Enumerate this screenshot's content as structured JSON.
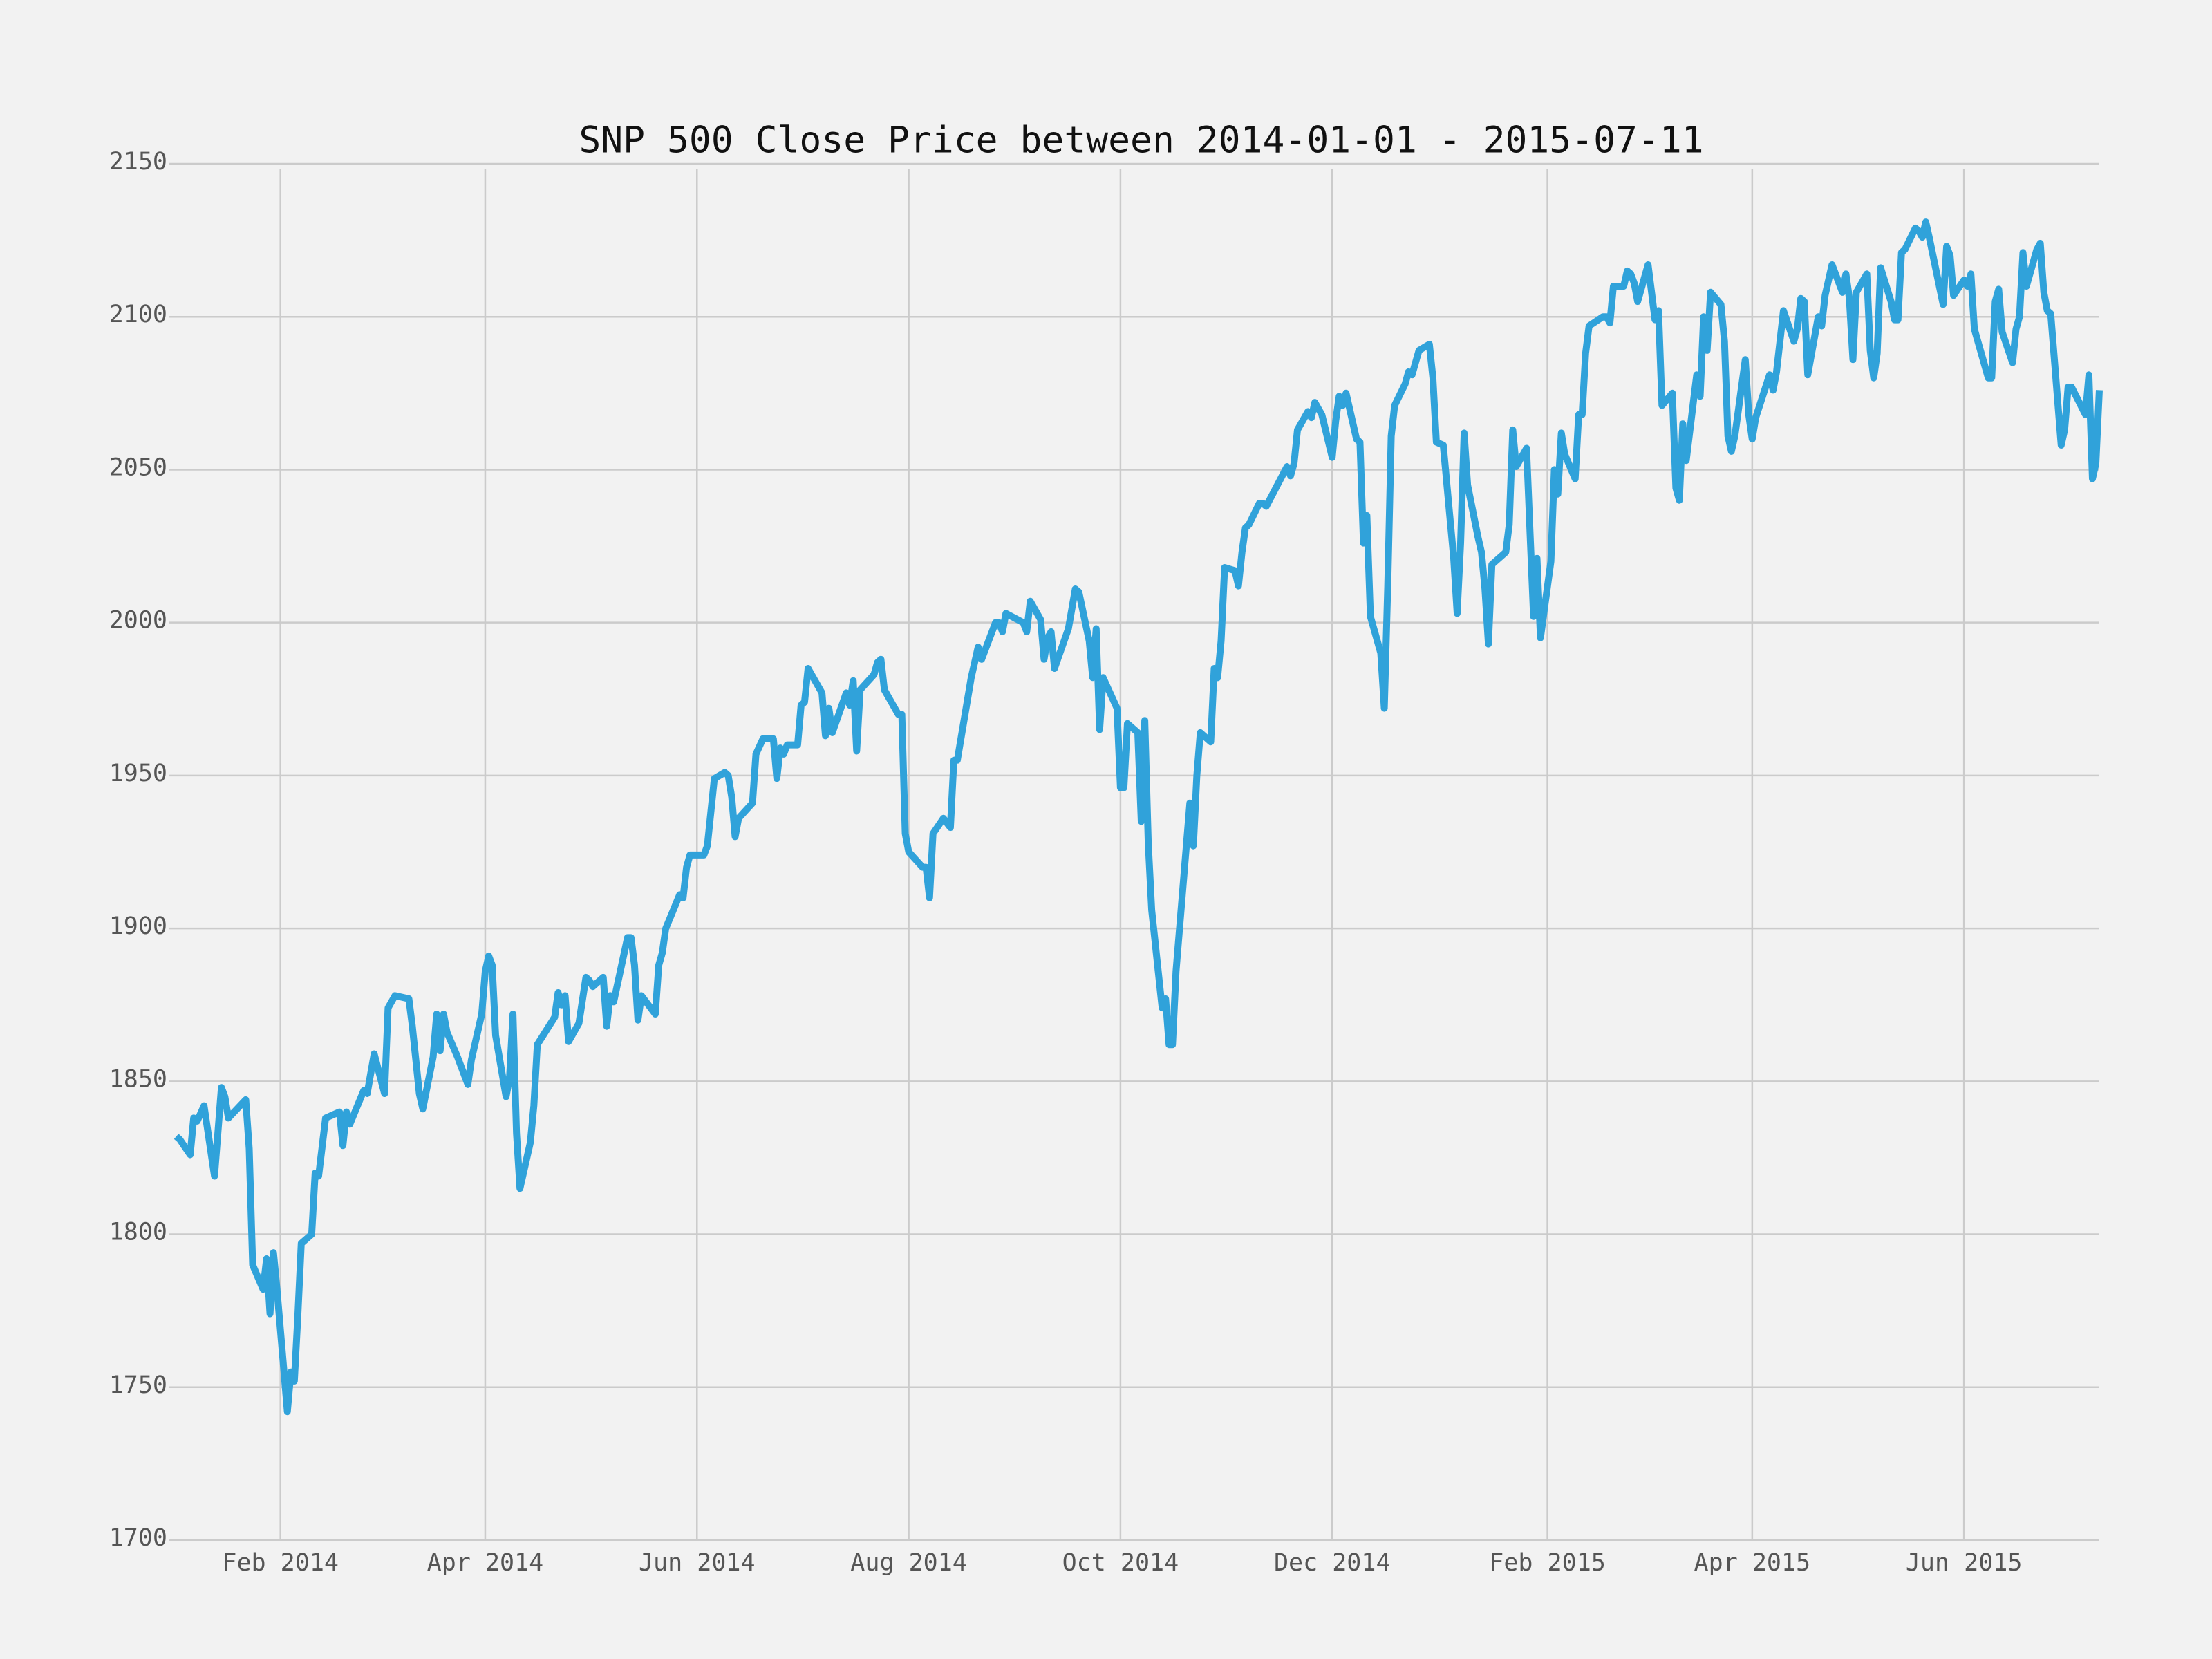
{
  "chart_data": {
    "type": "line",
    "title": "SNP 500 Close Price between 2014-01-01 - 2015-07-11",
    "color": "#30a2da",
    "grid": true,
    "xlim": [
      "2013-12-31",
      "2015-07-10"
    ],
    "xticks": [
      {
        "value": "2014-02-01",
        "label": "Feb 2014"
      },
      {
        "value": "2014-04-01",
        "label": "Apr 2014"
      },
      {
        "value": "2014-06-01",
        "label": "Jun 2014"
      },
      {
        "value": "2014-08-01",
        "label": "Aug 2014"
      },
      {
        "value": "2014-10-01",
        "label": "Oct 2014"
      },
      {
        "value": "2014-12-01",
        "label": "Dec 2014"
      },
      {
        "value": "2015-02-01",
        "label": "Feb 2015"
      },
      {
        "value": "2015-04-01",
        "label": "Apr 2015"
      },
      {
        "value": "2015-06-01",
        "label": "Jun 2015"
      }
    ],
    "ylim": [
      1700,
      2150
    ],
    "yticks": [
      1700,
      1750,
      1800,
      1850,
      1900,
      1950,
      2000,
      2050,
      2100,
      2150
    ],
    "x": [
      "2014-01-02",
      "2014-01-03",
      "2014-01-06",
      "2014-01-07",
      "2014-01-08",
      "2014-01-10",
      "2014-01-13",
      "2014-01-15",
      "2014-01-16",
      "2014-01-17",
      "2014-01-22",
      "2014-01-23",
      "2014-01-24",
      "2014-01-27",
      "2014-01-28",
      "2014-01-29",
      "2014-01-30",
      "2014-01-31",
      "2014-02-03",
      "2014-02-04",
      "2014-02-05",
      "2014-02-06",
      "2014-02-07",
      "2014-02-10",
      "2014-02-11",
      "2014-02-12",
      "2014-02-14",
      "2014-02-18",
      "2014-02-19",
      "2014-02-20",
      "2014-02-21",
      "2014-02-25",
      "2014-02-26",
      "2014-02-28",
      "2014-03-03",
      "2014-03-04",
      "2014-03-06",
      "2014-03-10",
      "2014-03-11",
      "2014-03-13",
      "2014-03-14",
      "2014-03-17",
      "2014-03-18",
      "2014-03-19",
      "2014-03-20",
      "2014-03-21",
      "2014-03-24",
      "2014-03-26",
      "2014-03-27",
      "2014-03-28",
      "2014-03-31",
      "2014-04-01",
      "2014-04-02",
      "2014-04-03",
      "2014-04-04",
      "2014-04-07",
      "2014-04-08",
      "2014-04-09",
      "2014-04-10",
      "2014-04-11",
      "2014-04-14",
      "2014-04-15",
      "2014-04-16",
      "2014-04-21",
      "2014-04-22",
      "2014-04-23",
      "2014-04-24",
      "2014-04-25",
      "2014-04-28",
      "2014-04-30",
      "2014-05-01",
      "2014-05-02",
      "2014-05-05",
      "2014-05-06",
      "2014-05-07",
      "2014-05-08",
      "2014-05-12",
      "2014-05-13",
      "2014-05-14",
      "2014-05-15",
      "2014-05-16",
      "2014-05-20",
      "2014-05-21",
      "2014-05-22",
      "2014-05-23",
      "2014-05-27",
      "2014-05-28",
      "2014-05-29",
      "2014-05-30",
      "2014-06-02",
      "2014-06-03",
      "2014-06-04",
      "2014-06-06",
      "2014-06-09",
      "2014-06-10",
      "2014-06-11",
      "2014-06-12",
      "2014-06-13",
      "2014-06-17",
      "2014-06-18",
      "2014-06-20",
      "2014-06-23",
      "2014-06-24",
      "2014-06-25",
      "2014-06-26",
      "2014-06-27",
      "2014-06-30",
      "2014-07-01",
      "2014-07-02",
      "2014-07-03",
      "2014-07-07",
      "2014-07-08",
      "2014-07-09",
      "2014-07-10",
      "2014-07-14",
      "2014-07-15",
      "2014-07-16",
      "2014-07-17",
      "2014-07-18",
      "2014-07-22",
      "2014-07-23",
      "2014-07-24",
      "2014-07-25",
      "2014-07-29",
      "2014-07-30",
      "2014-07-31",
      "2014-08-01",
      "2014-08-05",
      "2014-08-06",
      "2014-08-07",
      "2014-08-08",
      "2014-08-11",
      "2014-08-13",
      "2014-08-14",
      "2014-08-15",
      "2014-08-19",
      "2014-08-20",
      "2014-08-21",
      "2014-08-22",
      "2014-08-26",
      "2014-08-27",
      "2014-08-28",
      "2014-08-29",
      "2014-09-03",
      "2014-09-04",
      "2014-09-05",
      "2014-09-08",
      "2014-09-09",
      "2014-09-10",
      "2014-09-11",
      "2014-09-12",
      "2014-09-16",
      "2014-09-18",
      "2014-09-19",
      "2014-09-22",
      "2014-09-23",
      "2014-09-24",
      "2014-09-25",
      "2014-09-26",
      "2014-09-30",
      "2014-10-01",
      "2014-10-02",
      "2014-10-03",
      "2014-10-06",
      "2014-10-07",
      "2014-10-08",
      "2014-10-09",
      "2014-10-10",
      "2014-10-13",
      "2014-10-14",
      "2014-10-15",
      "2014-10-16",
      "2014-10-17",
      "2014-10-21",
      "2014-10-22",
      "2014-10-23",
      "2014-10-24",
      "2014-10-27",
      "2014-10-28",
      "2014-10-29",
      "2014-10-30",
      "2014-10-31",
      "2014-11-03",
      "2014-11-04",
      "2014-11-05",
      "2014-11-06",
      "2014-11-07",
      "2014-11-10",
      "2014-11-11",
      "2014-11-12",
      "2014-11-18",
      "2014-11-19",
      "2014-11-20",
      "2014-11-21",
      "2014-11-24",
      "2014-11-25",
      "2014-11-26",
      "2014-11-28",
      "2014-12-01",
      "2014-12-02",
      "2014-12-03",
      "2014-12-04",
      "2014-12-05",
      "2014-12-08",
      "2014-12-09",
      "2014-12-10",
      "2014-12-11",
      "2014-12-12",
      "2014-12-15",
      "2014-12-16",
      "2014-12-17",
      "2014-12-18",
      "2014-12-19",
      "2014-12-22",
      "2014-12-23",
      "2014-12-24",
      "2014-12-26",
      "2014-12-29",
      "2014-12-30",
      "2014-12-31",
      "2015-01-02",
      "2015-01-05",
      "2015-01-06",
      "2015-01-07",
      "2015-01-08",
      "2015-01-09",
      "2015-01-12",
      "2015-01-13",
      "2015-01-14",
      "2015-01-15",
      "2015-01-16",
      "2015-01-20",
      "2015-01-21",
      "2015-01-22",
      "2015-01-23",
      "2015-01-26",
      "2015-01-27",
      "2015-01-28",
      "2015-01-29",
      "2015-01-30",
      "2015-02-02",
      "2015-02-03",
      "2015-02-04",
      "2015-02-05",
      "2015-02-06",
      "2015-02-09",
      "2015-02-10",
      "2015-02-11",
      "2015-02-12",
      "2015-02-13",
      "2015-02-17",
      "2015-02-18",
      "2015-02-19",
      "2015-02-20",
      "2015-02-23",
      "2015-02-24",
      "2015-02-25",
      "2015-02-26",
      "2015-02-27",
      "2015-03-02",
      "2015-03-03",
      "2015-03-04",
      "2015-03-05",
      "2015-03-06",
      "2015-03-09",
      "2015-03-10",
      "2015-03-11",
      "2015-03-12",
      "2015-03-13",
      "2015-03-16",
      "2015-03-17",
      "2015-03-18",
      "2015-03-19",
      "2015-03-20",
      "2015-03-23",
      "2015-03-24",
      "2015-03-25",
      "2015-03-26",
      "2015-03-27",
      "2015-03-30",
      "2015-03-31",
      "2015-04-01",
      "2015-04-02",
      "2015-04-06",
      "2015-04-07",
      "2015-04-08",
      "2015-04-09",
      "2015-04-10",
      "2015-04-13",
      "2015-04-14",
      "2015-04-15",
      "2015-04-16",
      "2015-04-17",
      "2015-04-20",
      "2015-04-21",
      "2015-04-22",
      "2015-04-23",
      "2015-04-24",
      "2015-04-27",
      "2015-04-28",
      "2015-04-29",
      "2015-04-30",
      "2015-05-01",
      "2015-05-04",
      "2015-05-05",
      "2015-05-06",
      "2015-05-07",
      "2015-05-08",
      "2015-05-11",
      "2015-05-12",
      "2015-05-13",
      "2015-05-14",
      "2015-05-15",
      "2015-05-18",
      "2015-05-19",
      "2015-05-20",
      "2015-05-21",
      "2015-05-22",
      "2015-05-26",
      "2015-05-27",
      "2015-05-28",
      "2015-05-29",
      "2015-06-01",
      "2015-06-02",
      "2015-06-03",
      "2015-06-04",
      "2015-06-05",
      "2015-06-08",
      "2015-06-09",
      "2015-06-10",
      "2015-06-11",
      "2015-06-12",
      "2015-06-15",
      "2015-06-16",
      "2015-06-17",
      "2015-06-18",
      "2015-06-19",
      "2015-06-22",
      "2015-06-23",
      "2015-06-24",
      "2015-06-25",
      "2015-06-26",
      "2015-06-29",
      "2015-06-30",
      "2015-07-01",
      "2015-07-02",
      "2015-07-06",
      "2015-07-07",
      "2015-07-08",
      "2015-07-09",
      "2015-07-10"
    ],
    "values": [
      1832,
      1831,
      1826,
      1838,
      1837,
      1842,
      1819,
      1848,
      1845,
      1838,
      1844,
      1828,
      1790,
      1782,
      1792,
      1774,
      1794,
      1782,
      1742,
      1755,
      1752,
      1773,
      1797,
      1800,
      1820,
      1819,
      1838,
      1840,
      1829,
      1840,
      1836,
      1847,
      1846,
      1859,
      1846,
      1874,
      1878,
      1877,
      1868,
      1846,
      1841,
      1858,
      1872,
      1860,
      1872,
      1866,
      1858,
      1852,
      1849,
      1857,
      1872,
      1886,
      1891,
      1888,
      1865,
      1845,
      1851,
      1872,
      1833,
      1815,
      1830,
      1842,
      1862,
      1871,
      1879,
      1875,
      1878,
      1863,
      1869,
      1884,
      1883,
      1881,
      1884,
      1868,
      1878,
      1876,
      1897,
      1897,
      1888,
      1870,
      1878,
      1872,
      1888,
      1892,
      1900,
      1911,
      1910,
      1920,
      1924,
      1924,
      1924,
      1927,
      1949,
      1951,
      1950,
      1943,
      1930,
      1936,
      1941,
      1957,
      1962,
      1962,
      1949,
      1959,
      1957,
      1960,
      1960,
      1973,
      1974,
      1985,
      1977,
      1963,
      1972,
      1964,
      1977,
      1973,
      1981,
      1958,
      1978,
      1983,
      1987,
      1988,
      1978,
      1970,
      1970,
      1931,
      1925,
      1920,
      1920,
      1910,
      1931,
      1936,
      1933,
      1955,
      1955,
      1982,
      1987,
      1992,
      1988,
      2000,
      2000,
      1997,
      2003,
      2000,
      1997,
      2007,
      2001,
      1988,
      1995,
      1997,
      1985,
      1998,
      2011,
      2010,
      1994,
      1982,
      1998,
      1965,
      1982,
      1972,
      1946,
      1946,
      1967,
      1964,
      1935,
      1968,
      1928,
      1906,
      1874,
      1877,
      1862,
      1862,
      1886,
      1941,
      1927,
      1950,
      1964,
      1961,
      1985,
      1982,
      1994,
      2018,
      2017,
      2012,
      2023,
      2031,
      2032,
      2039,
      2039,
      2038,
      2051,
      2048,
      2052,
      2063,
      2069,
      2067,
      2072,
      2068,
      2054,
      2066,
      2074,
      2071,
      2075,
      2060,
      2059,
      2026,
      2035,
      2002,
      1990,
      1972,
      2012,
      2061,
      2071,
      2078,
      2082,
      2081,
      2089,
      2091,
      2080,
      2059,
      2058,
      2021,
      2003,
      2026,
      2062,
      2045,
      2028,
      2023,
      2011,
      1993,
      2019,
      2023,
      2032,
      2063,
      2051,
      2057,
      2029,
      2002,
      2021,
      1995,
      2020,
      2050,
      2042,
      2062,
      2055,
      2047,
      2068,
      2068,
      2088,
      2097,
      2100,
      2100,
      2098,
      2110,
      2110,
      2115,
      2114,
      2111,
      2105,
      2117,
      2108,
      2099,
      2102,
      2071,
      2075,
      2044,
      2040,
      2065,
      2053,
      2081,
      2074,
      2100,
      2089,
      2108,
      2104,
      2092,
      2061,
      2056,
      2061,
      2086,
      2068,
      2060,
      2067,
      2081,
      2076,
      2082,
      2092,
      2102,
      2092,
      2096,
      2106,
      2105,
      2081,
      2100,
      2097,
      2107,
      2112,
      2117,
      2108,
      2114,
      2106,
      2086,
      2108,
      2114,
      2089,
      2080,
      2088,
      2116,
      2105,
      2099,
      2099,
      2121,
      2122,
      2129,
      2128,
      2126,
      2131,
      2126,
      2104,
      2123,
      2120,
      2107,
      2112,
      2110,
      2114,
      2096,
      2092,
      2080,
      2080,
      2105,
      2109,
      2095,
      2085,
      2096,
      2100,
      2121,
      2110,
      2122,
      2124,
      2108,
      2102,
      2101,
      2058,
      2063,
      2077,
      2077,
      2068,
      2081,
      2047,
      2052,
      2076
    ]
  }
}
